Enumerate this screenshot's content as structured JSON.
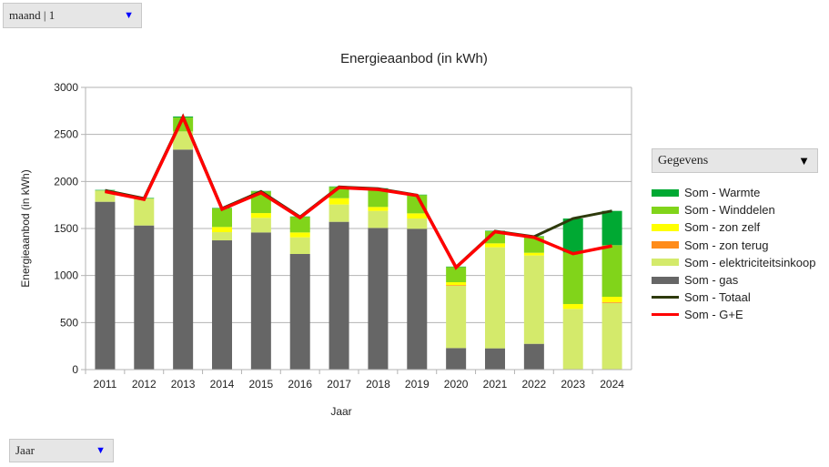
{
  "controls": {
    "top_dropdown": {
      "value": "maand | 1",
      "arrow_color": "#0000ff"
    },
    "bottom_dropdown": {
      "value": "Jaar",
      "arrow_color": "#0000ff"
    },
    "legend_dropdown": {
      "value": "Gegevens",
      "arrow_color": "#000000"
    }
  },
  "chart_data": {
    "type": "bar",
    "stacked": true,
    "title": "Energieaanbod (in kWh)",
    "xlabel": "Jaar",
    "ylabel": "Energieaanbod (in kWh)",
    "ylim": [
      0,
      3000
    ],
    "yticks": [
      0,
      500,
      1000,
      1500,
      2000,
      2500,
      3000
    ],
    "grid": true,
    "legend_position": "right",
    "categories": [
      "2011",
      "2012",
      "2013",
      "2014",
      "2015",
      "2016",
      "2017",
      "2018",
      "2019",
      "2020",
      "2021",
      "2022",
      "2023",
      "2024"
    ],
    "series": [
      {
        "name": "Som - gas",
        "kind": "bar",
        "color": "#666666",
        "values": [
          1784,
          1532,
          2339,
          1374,
          1458,
          1229,
          1571,
          1506,
          1497,
          229,
          226,
          274,
          0,
          0
        ]
      },
      {
        "name": "Som - elektriciteitsinkoop",
        "kind": "bar",
        "color": "#d4ea6b",
        "values": [
          119,
          284,
          193,
          87,
          155,
          177,
          184,
          181,
          109,
          661,
          1074,
          939,
          645,
          709
        ]
      },
      {
        "name": "Som - zon terug",
        "kind": "bar",
        "color": "#ff8c1a",
        "values": [
          0,
          0,
          0,
          0,
          0,
          0,
          0,
          0,
          0,
          8,
          0,
          0,
          0,
          8
        ]
      },
      {
        "name": "Som - zon zelf",
        "kind": "bar",
        "color": "#ffff00",
        "values": [
          0,
          0,
          0,
          55,
          51,
          52,
          67,
          42,
          55,
          31,
          42,
          29,
          52,
          57
        ]
      },
      {
        "name": "Som - Winddelen",
        "kind": "bar",
        "color": "#81d41a",
        "values": [
          2,
          4,
          148,
          197,
          230,
          165,
          120,
          194,
          194,
          161,
          129,
          171,
          548,
          549
        ]
      },
      {
        "name": "Som - Warmte",
        "kind": "bar",
        "color": "#00a933",
        "values": [
          5,
          5,
          10,
          5,
          5,
          5,
          5,
          5,
          5,
          5,
          5,
          5,
          361,
          364
        ]
      },
      {
        "name": "Som - Totaal",
        "kind": "line",
        "color": "#355269",
        "values": [
          1905,
          1820,
          2690,
          1713,
          1894,
          1623,
          1942,
          1923,
          1855,
          1090,
          1471,
          1413,
          1606,
          1687
        ]
      },
      {
        "name": "Som - G+E",
        "kind": "line",
        "color": "#ff0000",
        "values": [
          1893,
          1810,
          2680,
          1705,
          1880,
          1615,
          1935,
          1915,
          1850,
          1085,
          1465,
          1405,
          1232,
          1315
        ]
      }
    ],
    "legend_order": [
      "Som - Warmte",
      "Som - Winddelen",
      "Som - zon zelf",
      "Som - zon terug",
      "Som - elektriciteitsinkoop",
      "Som - gas",
      "Som - Totaal",
      "Som - G+E"
    ]
  }
}
